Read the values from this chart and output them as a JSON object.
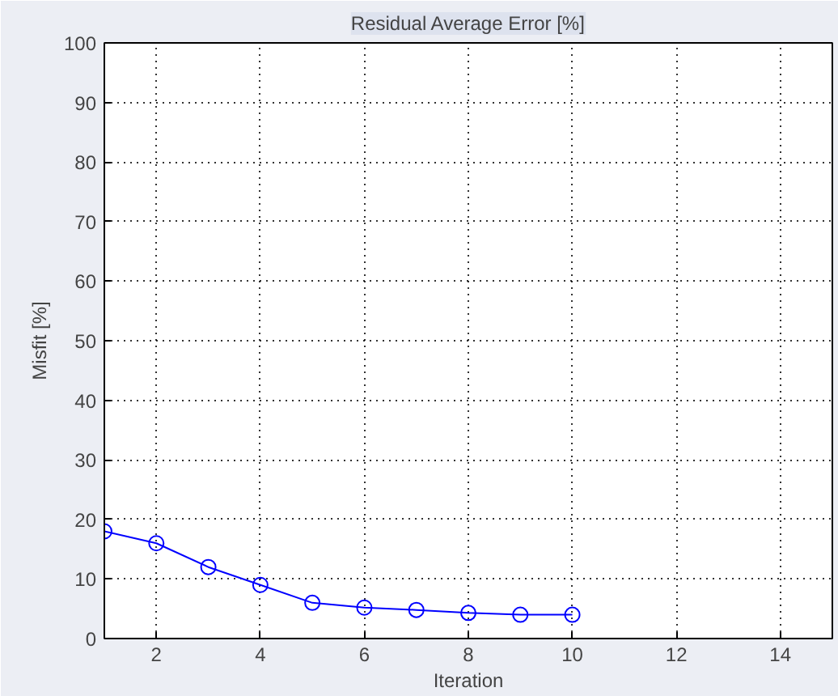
{
  "chart_data": {
    "type": "line",
    "title": "Residual Average Error [%]",
    "xlabel": "Iteration",
    "ylabel": "Misfit [%]",
    "x": [
      1,
      2,
      3,
      4,
      5,
      6,
      7,
      8,
      9,
      10
    ],
    "series": [
      {
        "color": "#0000ff",
        "values": [
          18,
          16,
          12,
          9,
          6,
          5.2,
          4.8,
          4.3,
          4,
          4
        ]
      }
    ],
    "xlim": [
      1,
      15
    ],
    "xticks": [
      2,
      4,
      6,
      8,
      10,
      12,
      14
    ],
    "ylim": [
      0,
      100
    ],
    "yticks": [
      0,
      10,
      20,
      30,
      40,
      50,
      60,
      70,
      80,
      90,
      100
    ],
    "grid": true,
    "marker": "circle",
    "line_style": "solid"
  }
}
